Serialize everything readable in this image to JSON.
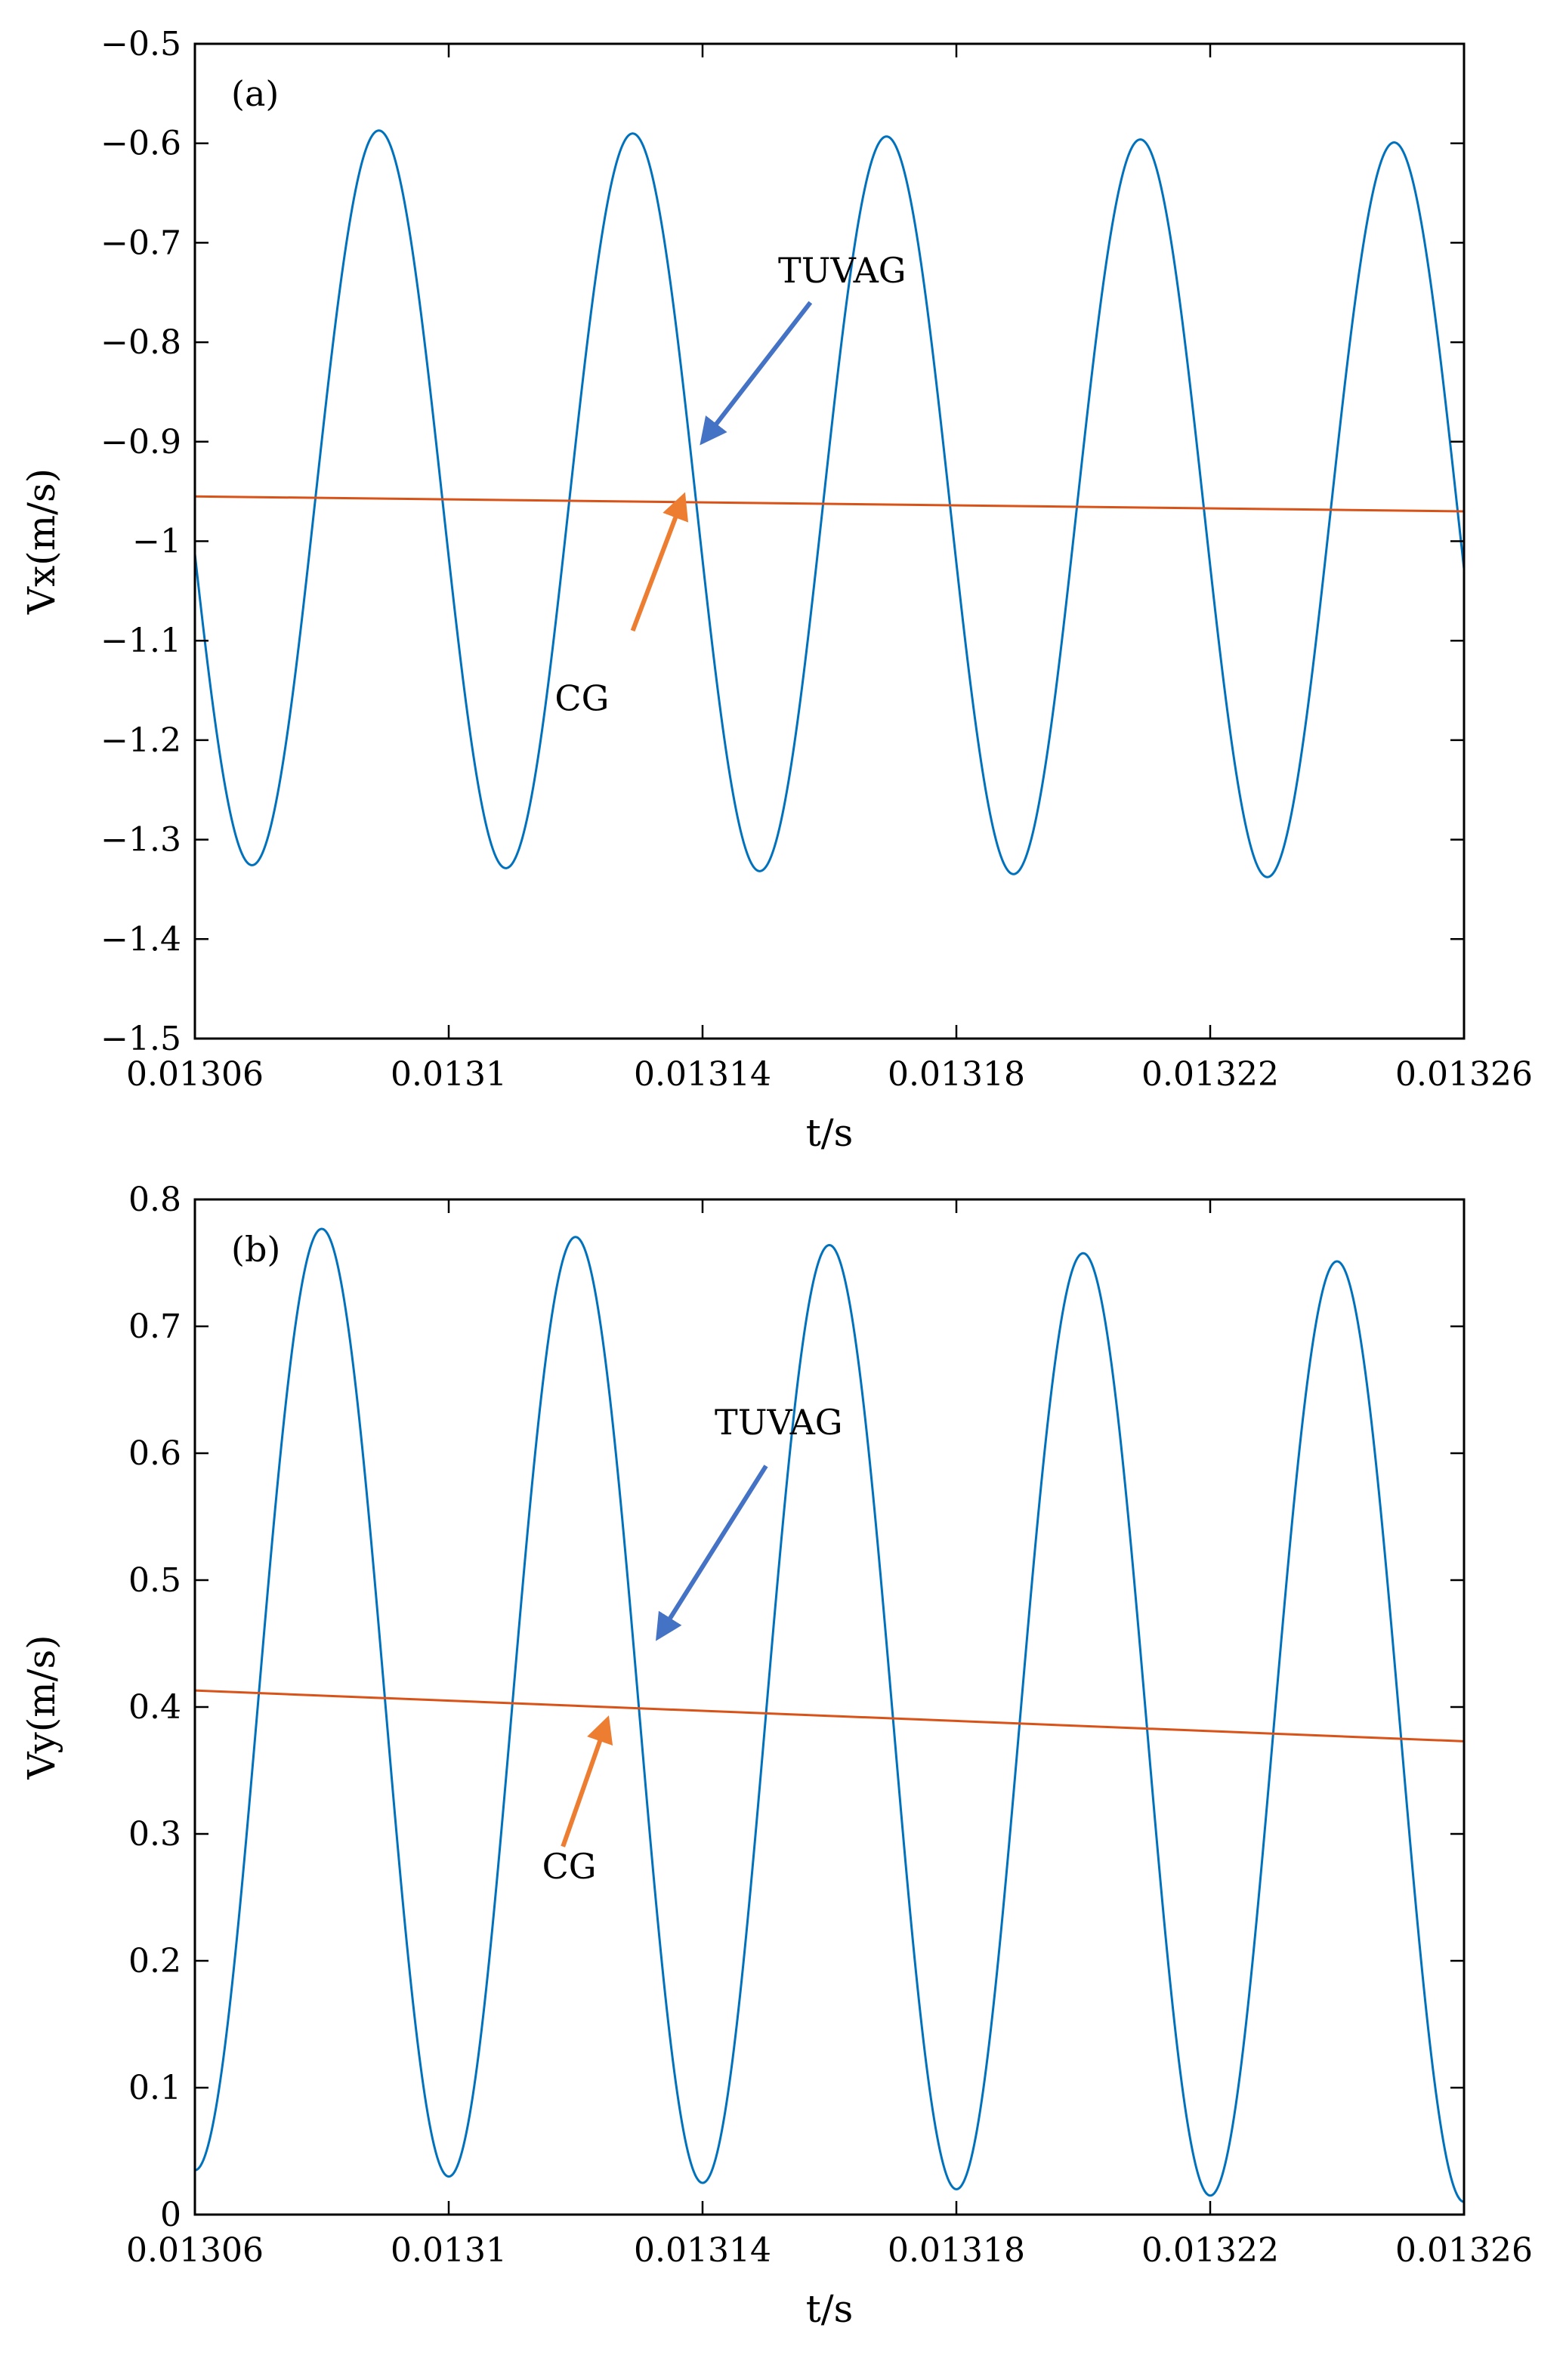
{
  "colors": {
    "tuvag": "#0072BD",
    "cg": "#D95319",
    "arrow_tuvag": "#4472C4",
    "arrow_cg": "#ED7D31",
    "axis": "#000000"
  },
  "chart_data": [
    {
      "type": "line",
      "panel_label": "(a)",
      "xlabel": "t/s",
      "ylabel": "Vx(m/s)",
      "xlim": [
        0.01306,
        0.01326
      ],
      "ylim": [
        -1.5,
        -0.5
      ],
      "xticks": [
        0.01306,
        0.0131,
        0.01314,
        0.01318,
        0.01322,
        0.01326
      ],
      "xtick_labels": [
        "0.01306",
        "0.0131",
        "0.01314",
        "0.01318",
        "0.01322",
        "0.01326"
      ],
      "yticks": [
        -1.5,
        -1.4,
        -1.3,
        -1.2,
        -1.1,
        -1,
        -0.9,
        -0.8,
        -0.7,
        -0.6,
        -0.5
      ],
      "ytick_labels": [
        "−1.5",
        "−1.4",
        "−1.3",
        "−1.2",
        "−1.1",
        "−1",
        "−0.9",
        "−0.8",
        "−0.7",
        "−0.6",
        "−0.5"
      ],
      "series": [
        {
          "name": "TUVAG",
          "kind": "sinusoid",
          "period": 4e-05,
          "t_peak": 0.013089,
          "peak_start": -0.585,
          "peak_end": -0.6,
          "trough_start": -1.325,
          "trough_end": -1.34
        },
        {
          "name": "CG",
          "kind": "linear",
          "x": [
            0.01306,
            0.01326
          ],
          "y": [
            -0.955,
            -0.97
          ]
        }
      ],
      "annotations": [
        {
          "text": "TUVAG",
          "text_at": [
            0.013162,
            -0.74
          ],
          "arrow_from": [
            0.013157,
            -0.76
          ],
          "arrow_to": [
            0.01314,
            -0.9
          ],
          "color_key": "arrow_tuvag"
        },
        {
          "text": "CG",
          "text_at": [
            0.013121,
            -1.17
          ],
          "arrow_from": [
            0.013129,
            -1.09
          ],
          "arrow_to": [
            0.013137,
            -0.955
          ],
          "color_key": "arrow_cg"
        }
      ]
    },
    {
      "type": "line",
      "panel_label": "(b)",
      "xlabel": "t/s",
      "ylabel": "Vy(m/s)",
      "xlim": [
        0.01306,
        0.01326
      ],
      "ylim": [
        0,
        0.8
      ],
      "xticks": [
        0.01306,
        0.0131,
        0.01314,
        0.01318,
        0.01322,
        0.01326
      ],
      "xtick_labels": [
        "0.01306",
        "0.0131",
        "0.01314",
        "0.01318",
        "0.01322",
        "0.01326"
      ],
      "yticks": [
        0,
        0.1,
        0.2,
        0.3,
        0.4,
        0.5,
        0.6,
        0.7,
        0.8
      ],
      "ytick_labels": [
        "0",
        "0.1",
        "0.2",
        "0.3",
        "0.4",
        "0.5",
        "0.6",
        "0.7",
        "0.8"
      ],
      "series": [
        {
          "name": "TUVAG",
          "kind": "sinusoid",
          "period": 4e-05,
          "t_peak": 0.01308,
          "peak_start": 0.78,
          "peak_end": 0.748,
          "trough_start": 0.035,
          "trough_end": 0.01
        },
        {
          "name": "CG",
          "kind": "linear",
          "x": [
            0.01306,
            0.01326
          ],
          "y": [
            0.413,
            0.373
          ]
        }
      ],
      "annotations": [
        {
          "text": "TUVAG",
          "text_at": [
            0.013152,
            0.615
          ],
          "arrow_from": [
            0.01315,
            0.59
          ],
          "arrow_to": [
            0.013133,
            0.455
          ],
          "color_key": "arrow_tuvag"
        },
        {
          "text": "CG",
          "text_at": [
            0.013119,
            0.265
          ],
          "arrow_from": [
            0.013118,
            0.29
          ],
          "arrow_to": [
            0.013125,
            0.39
          ],
          "color_key": "arrow_cg"
        }
      ]
    }
  ]
}
